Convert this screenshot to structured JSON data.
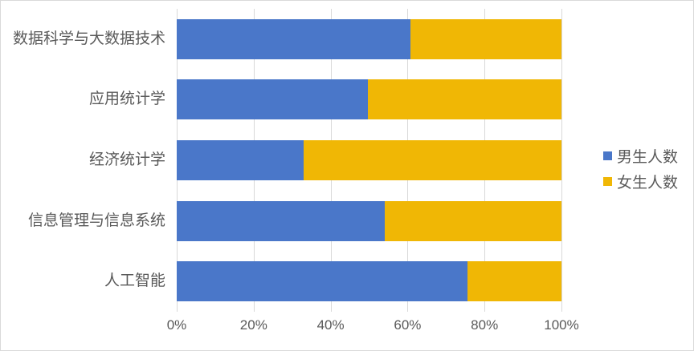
{
  "chart_data": {
    "type": "bar",
    "variant": "100-percent-stacked-horizontal",
    "title": "",
    "categories": [
      "数据科学与大数据技术",
      "应用统计学",
      "经济统计学",
      "信息管理与信息系统",
      "人工智能"
    ],
    "series": [
      {
        "name": "男生人数",
        "color": "#4A77C9",
        "values": [
          60.8,
          49.7,
          32.9,
          54.1,
          75.6
        ]
      },
      {
        "name": "女生人数",
        "color": "#F0B705",
        "values": [
          39.2,
          50.3,
          67.1,
          45.9,
          24.4
        ]
      }
    ],
    "x_axis": {
      "tick_labels": [
        "0%",
        "20%",
        "40%",
        "60%",
        "80%",
        "100%"
      ],
      "min": 0,
      "max": 100
    },
    "grid": true,
    "legend_position": "right",
    "styles": {
      "text_color": "#595959",
      "gridline_color": "#D9D9D9",
      "background_color": "#FFFFFF",
      "border_color": "#D9D9D9"
    }
  }
}
